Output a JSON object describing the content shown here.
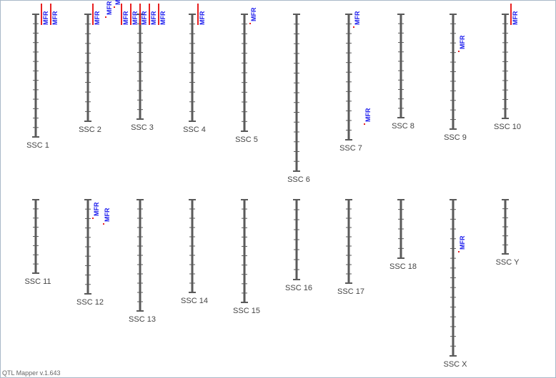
{
  "chromosomes": [
    {
      "label": "SSC 1",
      "qtls": [
        "MFR",
        "MFR"
      ]
    },
    {
      "label": "SSC 2",
      "qtls": [
        "MFR",
        "MFR",
        "MFR"
      ]
    },
    {
      "label": "SSC 3",
      "qtls": [
        "MFR",
        "MFR",
        "MFR",
        "MFR",
        "MFR"
      ]
    },
    {
      "label": "SSC 4",
      "qtls": [
        "MFR"
      ]
    },
    {
      "label": "SSC 5",
      "qtls": [
        "MFR"
      ]
    },
    {
      "label": "SSC 6",
      "qtls": []
    },
    {
      "label": "SSC 7",
      "qtls": [
        "MFR",
        "MFR"
      ]
    },
    {
      "label": "SSC 8",
      "qtls": []
    },
    {
      "label": "SSC 9",
      "qtls": [
        "MFR"
      ]
    },
    {
      "label": "SSC 10",
      "qtls": [
        "MFR"
      ]
    },
    {
      "label": "SSC 11",
      "qtls": []
    },
    {
      "label": "SSC 12",
      "qtls": [
        "MFR",
        "MFR"
      ]
    },
    {
      "label": "SSC 13",
      "qtls": []
    },
    {
      "label": "SSC 14",
      "qtls": []
    },
    {
      "label": "SSC 15",
      "qtls": []
    },
    {
      "label": "SSC 16",
      "qtls": []
    },
    {
      "label": "SSC 17",
      "qtls": []
    },
    {
      "label": "SSC 18",
      "qtls": []
    },
    {
      "label": "SSC X",
      "qtls": [
        "MFR"
      ]
    },
    {
      "label": "SSC Y",
      "qtls": []
    }
  ],
  "footer": {
    "version": "QTL Mapper v.1.643"
  }
}
